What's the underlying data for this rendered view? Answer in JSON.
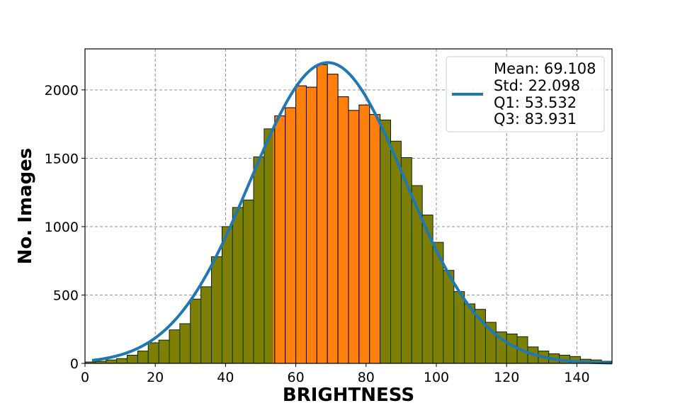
{
  "chart_data": {
    "type": "bar",
    "xlabel": "BRIGHTNESS",
    "ylabel": "No. Images",
    "xlim": [
      0,
      150
    ],
    "ylim": [
      0,
      2300
    ],
    "x_ticks": [
      0,
      20,
      40,
      60,
      80,
      100,
      120,
      140
    ],
    "y_ticks": [
      0,
      500,
      1000,
      1500,
      2000
    ],
    "grid": true,
    "legend_position": "top-right",
    "bin_width": 3,
    "bin_start": 0,
    "histogram_counts": [
      10,
      15,
      25,
      35,
      60,
      90,
      150,
      170,
      245,
      290,
      470,
      560,
      780,
      1000,
      1140,
      1195,
      1510,
      1715,
      1810,
      1870,
      2030,
      2020,
      2185,
      2115,
      1950,
      1850,
      1890,
      1820,
      1780,
      1625,
      1505,
      1300,
      1085,
      885,
      680,
      525,
      435,
      395,
      300,
      230,
      215,
      195,
      120,
      90,
      70,
      60,
      50,
      30,
      25,
      15
    ],
    "quartile_range": [
      53.532,
      83.931
    ],
    "colors": {
      "bar_fill": "#ff7f0e",
      "bar_overlay": "#008000",
      "bar_edge": "#000000",
      "curve": "#1f77b4",
      "grid": "#808080"
    },
    "curve": {
      "type": "normal-fit",
      "mean": 69.108,
      "std": 22.098,
      "x_start": 2,
      "x_end": 150
    },
    "legend": {
      "lines": [
        "Mean: 69.108",
        "Std: 22.098",
        "Q1: 53.532",
        "Q3: 83.931"
      ]
    }
  }
}
